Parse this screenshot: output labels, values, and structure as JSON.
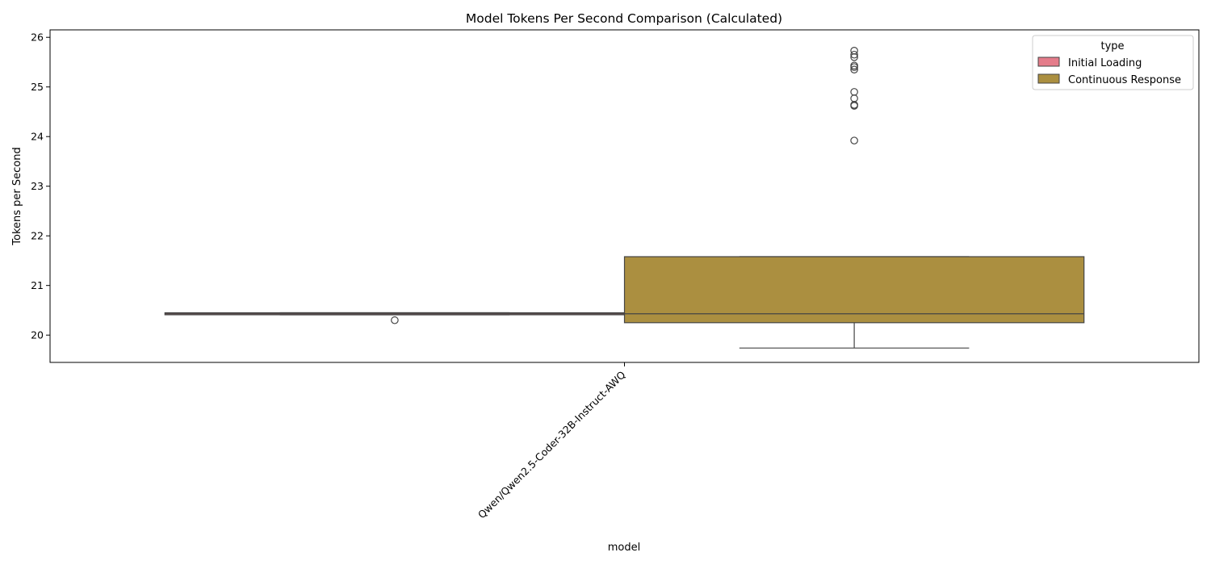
{
  "chart_data": {
    "type": "boxplot",
    "title": "Model Tokens Per Second Comparison (Calculated)",
    "xlabel": "model",
    "ylabel": "Tokens per Second",
    "ylim": [
      19.45,
      26.15
    ],
    "yticks": [
      20,
      21,
      22,
      23,
      24,
      25,
      26
    ],
    "categories": [
      "Qwen/Qwen2.5-Coder-32B-Instruct-AWQ"
    ],
    "legend": {
      "title": "type",
      "placement": "top-right"
    },
    "series": [
      {
        "name": "Initial Loading",
        "color": "#e47c8a",
        "box": {
          "whisker_low": 20.41,
          "q1": 20.41,
          "median": 20.43,
          "q3": 20.45,
          "whisker_high": 20.45
        },
        "outliers": [
          20.3
        ]
      },
      {
        "name": "Continuous Response",
        "color": "#ab8f40",
        "box": {
          "whisker_low": 19.74,
          "q1": 20.25,
          "median": 20.43,
          "q3": 21.58,
          "whisker_high": 21.58
        },
        "outliers": [
          23.92,
          24.62,
          24.64,
          24.77,
          24.9,
          25.35,
          25.4,
          25.43,
          25.6,
          25.65,
          25.73
        ]
      }
    ]
  }
}
